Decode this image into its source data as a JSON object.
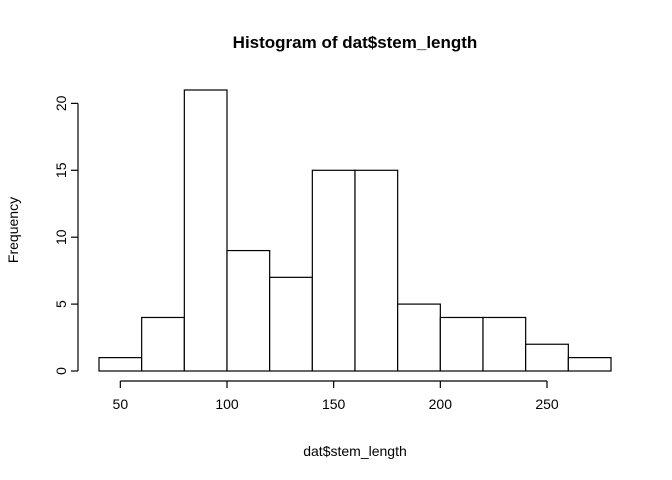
{
  "chart_data": {
    "type": "bar",
    "subtype": "histogram",
    "title": "Histogram of dat$stem_length",
    "xlabel": "dat$stem_length",
    "ylabel": "Frequency",
    "bins": [
      {
        "from": 40,
        "to": 60,
        "count": 1
      },
      {
        "from": 60,
        "to": 80,
        "count": 4
      },
      {
        "from": 80,
        "to": 100,
        "count": 21
      },
      {
        "from": 100,
        "to": 120,
        "count": 9
      },
      {
        "from": 120,
        "to": 140,
        "count": 7
      },
      {
        "from": 140,
        "to": 160,
        "count": 15
      },
      {
        "from": 160,
        "to": 180,
        "count": 15
      },
      {
        "from": 180,
        "to": 200,
        "count": 5
      },
      {
        "from": 200,
        "to": 220,
        "count": 4
      },
      {
        "from": 220,
        "to": 240,
        "count": 4
      },
      {
        "from": 240,
        "to": 260,
        "count": 2
      },
      {
        "from": 260,
        "to": 280,
        "count": 1
      }
    ],
    "xticks": [
      50,
      100,
      150,
      200,
      250
    ],
    "yticks": [
      0,
      5,
      10,
      15,
      20
    ],
    "xlim": [
      40,
      280
    ],
    "ylim": [
      0,
      21
    ],
    "grid": false,
    "bar_fill": "#ffffff",
    "bar_stroke": "#000000"
  }
}
